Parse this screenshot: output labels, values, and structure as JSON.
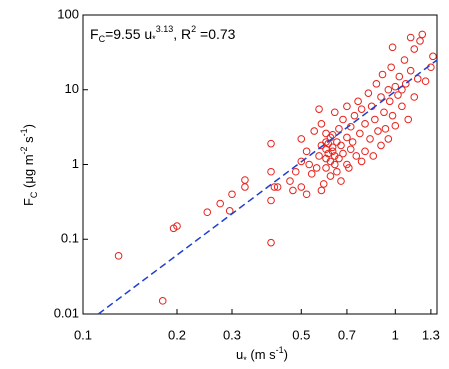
{
  "chart_data": {
    "type": "scatter",
    "annotation": [
      {
        "text": "F"
      },
      {
        "text": "C",
        "shift": "sub"
      },
      {
        "text": "=9.55 u"
      },
      {
        "text": "*",
        "shift": "sub"
      },
      {
        "text": "3.13",
        "shift": "super"
      },
      {
        "text": ", R"
      },
      {
        "text": "2",
        "shift": "super"
      },
      {
        "text": " =0.73"
      }
    ],
    "x_label": [
      {
        "text": "u"
      },
      {
        "text": "*",
        "shift": "sub"
      },
      {
        "text": " (m s"
      },
      {
        "text": "-1",
        "shift": "super"
      },
      {
        "text": ")"
      }
    ],
    "y_label": [
      {
        "text": "F"
      },
      {
        "text": "C",
        "shift": "sub"
      },
      {
        "text": " (μg m"
      },
      {
        "text": "-2",
        "shift": "super"
      },
      {
        "text": " s"
      },
      {
        "text": "-1",
        "shift": "super"
      },
      {
        "text": ")"
      }
    ],
    "xscale": "log",
    "yscale": "log",
    "grid": false,
    "xlim": [
      0.1,
      1.36
    ],
    "ylim": [
      0.01,
      100
    ],
    "xticks": [
      0.1,
      0.2,
      0.3,
      0.5,
      0.7,
      1,
      1.3
    ],
    "yticks": [
      0.01,
      0.1,
      1,
      10,
      100
    ],
    "series": [
      {
        "color": "#e8221c",
        "marker": "circle",
        "x": [
          0.13,
          0.18,
          0.195,
          0.2,
          0.25,
          0.275,
          0.295,
          0.3,
          0.33,
          0.33,
          0.4,
          0.4,
          0.4,
          0.4,
          0.41,
          0.42,
          0.46,
          0.47,
          0.48,
          0.5,
          0.5,
          0.5,
          0.52,
          0.52,
          0.53,
          0.54,
          0.55,
          0.56,
          0.57,
          0.57,
          0.58,
          0.58,
          0.58,
          0.59,
          0.6,
          0.6,
          0.6,
          0.6,
          0.6,
          0.61,
          0.61,
          0.62,
          0.62,
          0.62,
          0.63,
          0.63,
          0.63,
          0.64,
          0.64,
          0.64,
          0.65,
          0.65,
          0.66,
          0.66,
          0.67,
          0.67,
          0.68,
          0.68,
          0.7,
          0.7,
          0.7,
          0.71,
          0.72,
          0.72,
          0.73,
          0.74,
          0.75,
          0.76,
          0.77,
          0.78,
          0.78,
          0.8,
          0.8,
          0.82,
          0.83,
          0.84,
          0.85,
          0.86,
          0.87,
          0.88,
          0.9,
          0.9,
          0.91,
          0.92,
          0.93,
          0.95,
          0.95,
          0.96,
          0.97,
          0.98,
          1.0,
          1.0,
          1.02,
          1.03,
          1.05,
          1.05,
          1.07,
          1.08,
          1.1,
          1.12,
          1.15,
          1.15,
          1.18,
          1.2,
          1.22,
          1.12,
          0.98,
          1.25,
          1.3,
          1.32
        ],
        "values": [
          0.06,
          0.015,
          0.14,
          0.15,
          0.23,
          0.3,
          0.24,
          0.4,
          0.5,
          0.62,
          0.09,
          0.33,
          0.8,
          1.9,
          0.5,
          0.5,
          0.6,
          0.45,
          0.8,
          0.5,
          2.2,
          1.1,
          0.4,
          1.5,
          1.0,
          0.75,
          2.8,
          0.9,
          1.3,
          5.5,
          0.45,
          1.8,
          3.5,
          0.55,
          1.6,
          2.0,
          1.2,
          0.9,
          2.6,
          1.4,
          1.9,
          1.1,
          2.3,
          0.7,
          1.5,
          1.7,
          2.5,
          1.0,
          1.3,
          5.0,
          0.8,
          2.0,
          1.2,
          3.0,
          0.6,
          1.8,
          4.0,
          1.4,
          2.3,
          1.0,
          6.0,
          0.9,
          1.6,
          3.2,
          2.0,
          4.5,
          1.3,
          7.0,
          2.6,
          1.1,
          5.5,
          3.5,
          1.5,
          9.0,
          2.2,
          6.0,
          1.3,
          4.0,
          12,
          2.8,
          8.0,
          1.8,
          16,
          5.0,
          3.0,
          10,
          2.2,
          7.0,
          20,
          4.5,
          11,
          3.3,
          8.5,
          15,
          6.0,
          10,
          25,
          12,
          4.0,
          18,
          8,
          35,
          14,
          45,
          55,
          50,
          37,
          13,
          20,
          28
        ]
      },
      {
        "color": "#1f3fd0",
        "line": "dashed",
        "x": [
          0.112,
          1.36
        ],
        "values": [
          0.01,
          25
        ]
      }
    ]
  }
}
